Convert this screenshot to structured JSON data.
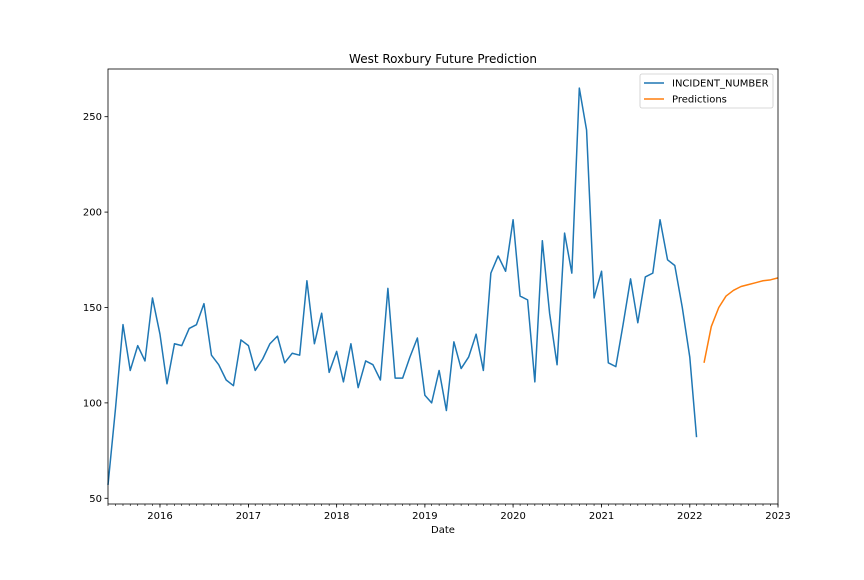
{
  "chart_data": {
    "type": "line",
    "title": "West Roxbury Future Prediction",
    "xlabel": "Date",
    "ylabel": "",
    "grid": false,
    "legend_position": "top-right",
    "xlim": [
      "2015-06-30",
      "2023-01-31"
    ],
    "ylim": [
      47,
      275
    ],
    "x_ticks": [
      {
        "date": "2016-01-31",
        "label": "2016"
      },
      {
        "date": "2017-01-31",
        "label": "2017"
      },
      {
        "date": "2018-01-31",
        "label": "2018"
      },
      {
        "date": "2019-01-31",
        "label": "2019"
      },
      {
        "date": "2020-01-31",
        "label": "2020"
      },
      {
        "date": "2021-01-31",
        "label": "2021"
      },
      {
        "date": "2022-01-31",
        "label": "2022"
      },
      {
        "date": "2023-01-31",
        "label": "2023"
      }
    ],
    "y_ticks": [
      50,
      100,
      150,
      200,
      250
    ],
    "series": [
      {
        "name": "INCIDENT_NUMBER",
        "color": "#1f77b4",
        "x": [
          "2015-06",
          "2015-07",
          "2015-08",
          "2015-09",
          "2015-10",
          "2015-11",
          "2015-12",
          "2016-01",
          "2016-02",
          "2016-03",
          "2016-04",
          "2016-05",
          "2016-06",
          "2016-07",
          "2016-08",
          "2016-09",
          "2016-10",
          "2016-11",
          "2016-12",
          "2017-01",
          "2017-02",
          "2017-03",
          "2017-04",
          "2017-05",
          "2017-06",
          "2017-07",
          "2017-08",
          "2017-09",
          "2017-10",
          "2017-11",
          "2017-12",
          "2018-01",
          "2018-02",
          "2018-03",
          "2018-04",
          "2018-05",
          "2018-06",
          "2018-07",
          "2018-08",
          "2018-09",
          "2018-10",
          "2018-11",
          "2018-12",
          "2019-01",
          "2019-02",
          "2019-03",
          "2019-04",
          "2019-05",
          "2019-06",
          "2019-07",
          "2019-08",
          "2019-09",
          "2019-10",
          "2019-11",
          "2019-12",
          "2020-01",
          "2020-02",
          "2020-03",
          "2020-04",
          "2020-05",
          "2020-06",
          "2020-07",
          "2020-08",
          "2020-09",
          "2020-10",
          "2020-11",
          "2020-12",
          "2021-01",
          "2021-02",
          "2021-03",
          "2021-04",
          "2021-05",
          "2021-06",
          "2021-07",
          "2021-08",
          "2021-09",
          "2021-10",
          "2021-11",
          "2021-12",
          "2022-01",
          "2022-02"
        ],
        "values": [
          57,
          97,
          141,
          117,
          130,
          122,
          155,
          136,
          110,
          131,
          130,
          139,
          141,
          152,
          125,
          120,
          112,
          109,
          133,
          130,
          117,
          123,
          131,
          135,
          121,
          126,
          125,
          164,
          131,
          147,
          116,
          127,
          111,
          131,
          108,
          122,
          120,
          112,
          160,
          113,
          113,
          124,
          134,
          104,
          100,
          117,
          96,
          132,
          118,
          124,
          136,
          117,
          168,
          177,
          169,
          196,
          156,
          154,
          111,
          185,
          147,
          120,
          189,
          168,
          265,
          243,
          155,
          169,
          121,
          119,
          141,
          165,
          142,
          166,
          168,
          196,
          175,
          172,
          150,
          124,
          82
        ]
      },
      {
        "name": "Predictions",
        "color": "#ff7f0e",
        "x": [
          "2022-03",
          "2022-04",
          "2022-05",
          "2022-06",
          "2022-07",
          "2022-08",
          "2022-09",
          "2022-10",
          "2022-11",
          "2022-12",
          "2023-01"
        ],
        "values": [
          121,
          140,
          150,
          156,
          159,
          161,
          162,
          163,
          164,
          164.5,
          165.5
        ]
      }
    ]
  }
}
